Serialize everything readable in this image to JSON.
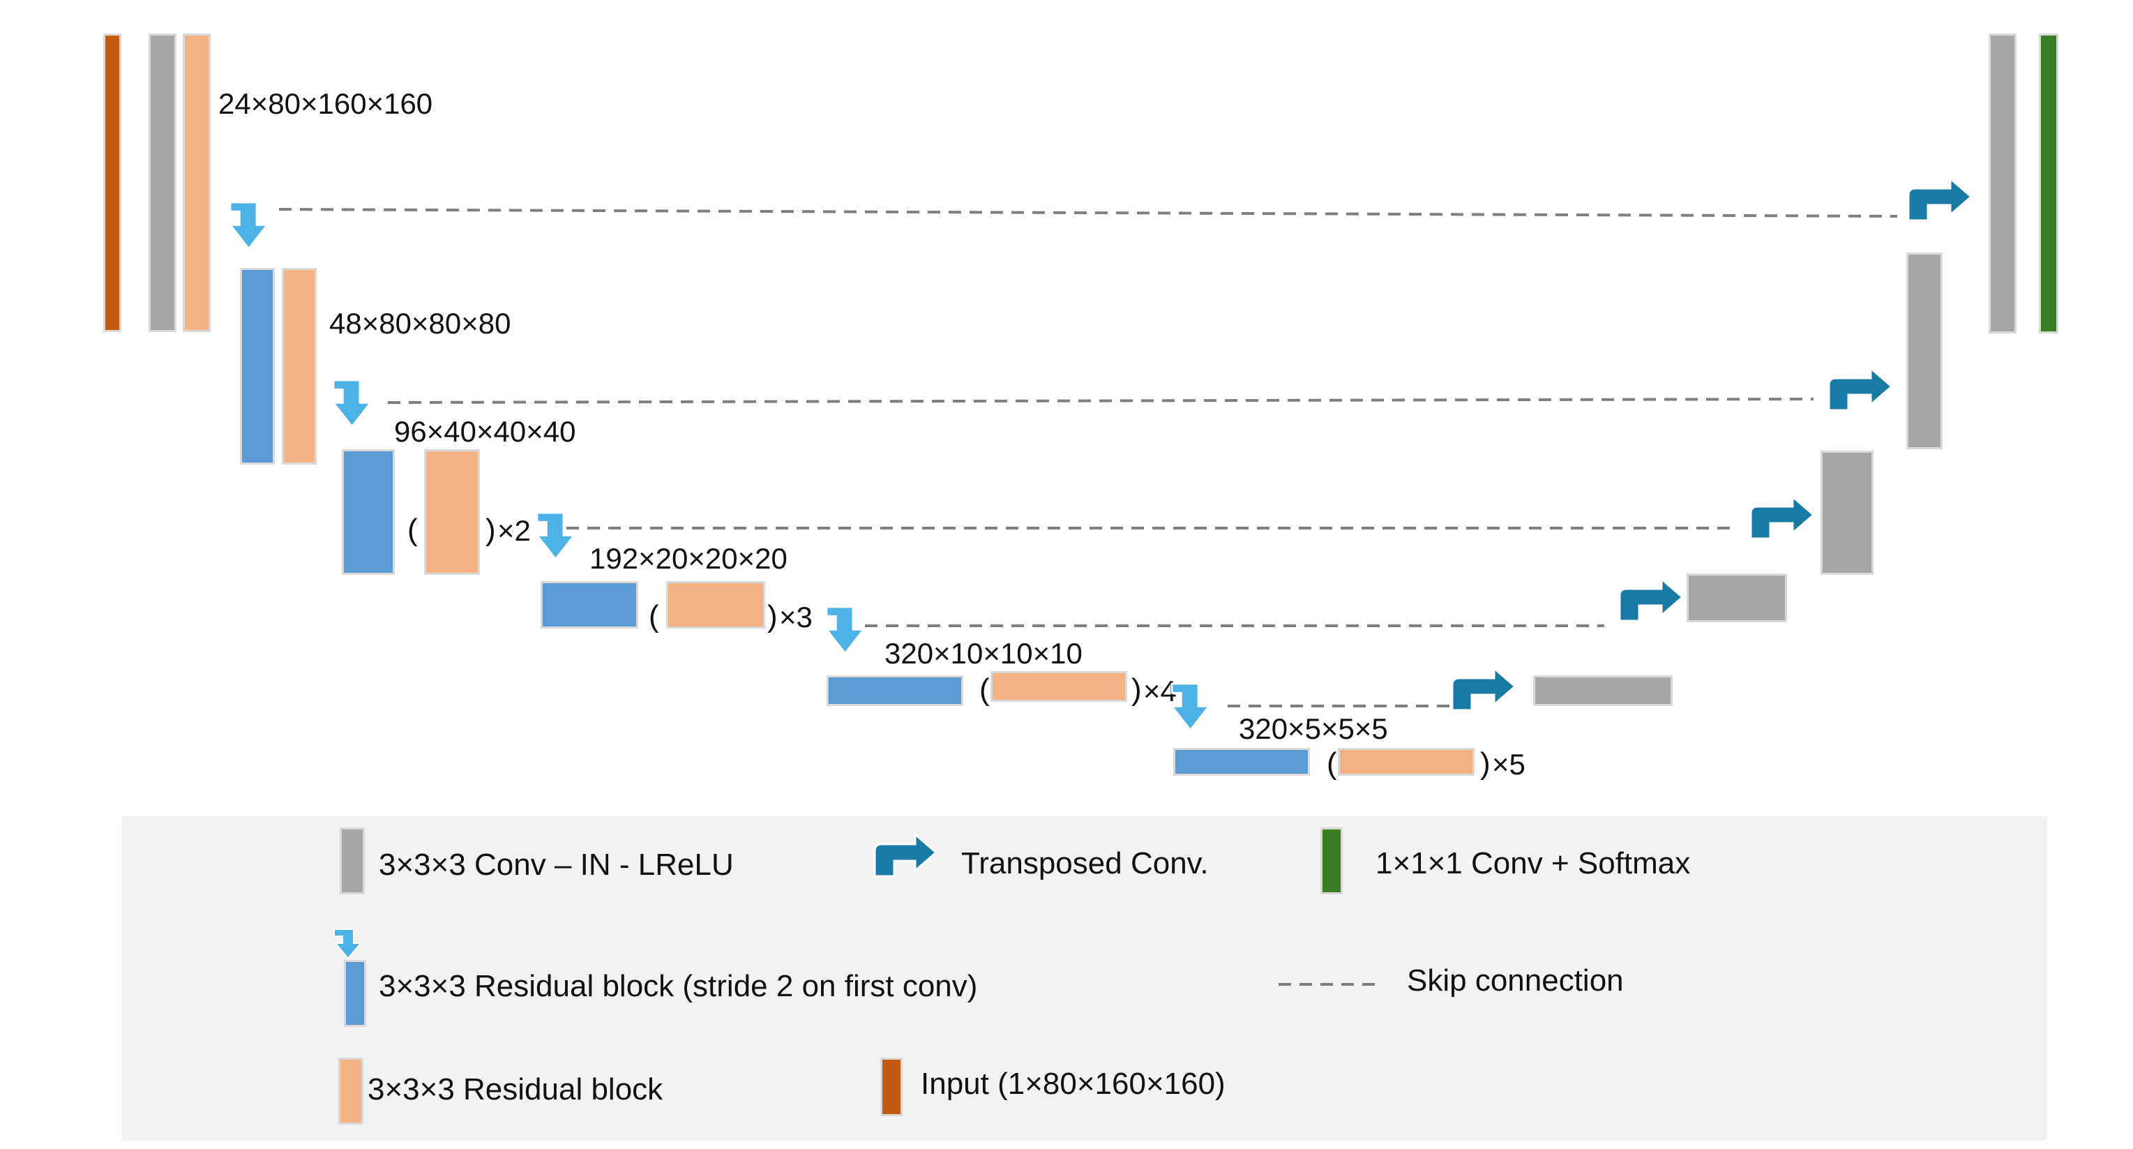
{
  "colors": {
    "input": "#c55a11",
    "conv": "#a6a6a6",
    "residual": "#f4b183",
    "residual_stride": "#5b9bd5",
    "down_arrow": "#4db3e6",
    "transposed": "#1a7aa6",
    "softmax": "#3a7d23",
    "skip": "#7f7f7f",
    "legend_bg": "#f2f2f2"
  },
  "icons": {
    "down_arrow": "down-arrow-icon",
    "transposed": "transposed-conv-arrow-icon"
  },
  "encoder": {
    "level1": {
      "shape": "24×80×160×160"
    },
    "level2": {
      "shape": "48×80×80×80"
    },
    "level3": {
      "shape": "96×40×40×40",
      "repeat": "×2"
    },
    "level4": {
      "shape": "192×20×20×20",
      "repeat": "×3"
    },
    "level5": {
      "shape": "320×10×10×10",
      "repeat": "×4"
    },
    "level6": {
      "shape": "320×5×5×5",
      "repeat": "×5"
    }
  },
  "legend": {
    "conv": "3×3×3 Conv – IN - LReLU",
    "transposed": "Transposed Conv.",
    "softmax": "1×1×1 Conv + Softmax",
    "residual_stride": "3×3×3 Residual block (stride 2 on first conv)",
    "skip": "Skip connection",
    "residual": "3×3×3 Residual block",
    "input": "Input (1×80×160×160)"
  }
}
